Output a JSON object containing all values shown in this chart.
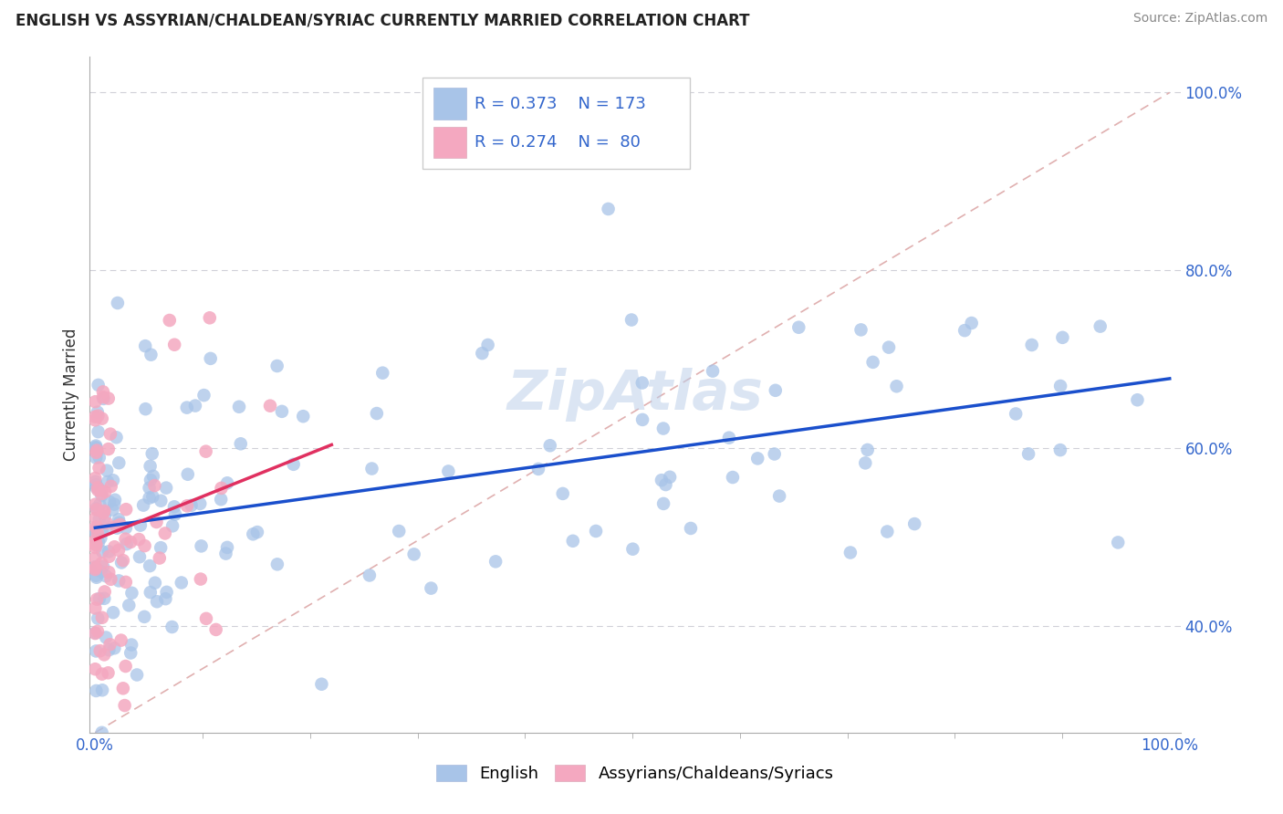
{
  "title": "ENGLISH VS ASSYRIAN/CHALDEAN/SYRIAC CURRENTLY MARRIED CORRELATION CHART",
  "source": "Source: ZipAtlas.com",
  "ylabel": "Currently Married",
  "legend_english": "English",
  "legend_assyrian": "Assyrians/Chaldeans/Syriacs",
  "r_english": 0.373,
  "n_english": 173,
  "r_assyrian": 0.274,
  "n_assyrian": 80,
  "blue_color": "#a8c4e8",
  "pink_color": "#f4a8c0",
  "blue_line_color": "#1a4fcc",
  "pink_line_color": "#e03060",
  "diagonal_color": "#e0b0b0",
  "grid_color": "#d0d0d8",
  "text_color": "#3366cc",
  "label_color": "#333333",
  "watermark": "ZipAtlas",
  "watermark_color": "#b8cce8"
}
